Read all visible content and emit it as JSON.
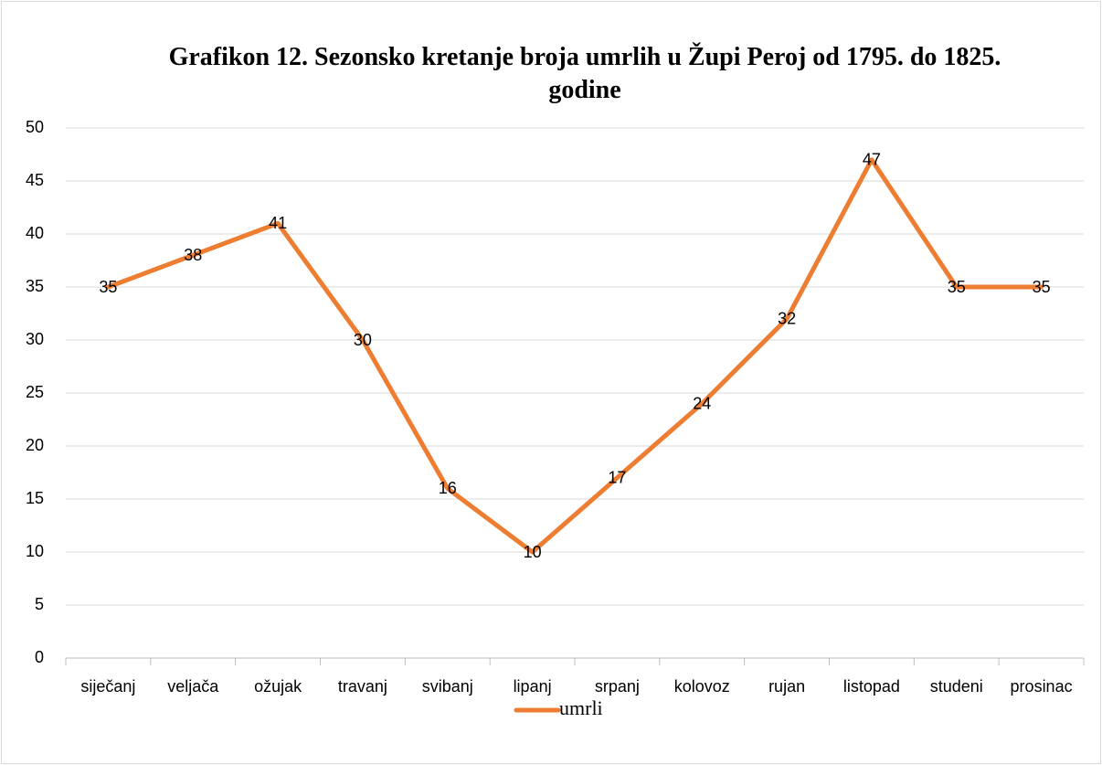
{
  "chart_data": {
    "type": "line",
    "title": "Grafikon 12. Sezonsko kretanje broja umrlih u Župi Peroj od 1795. do 1825. godine",
    "categories": [
      "siječanj",
      "veljača",
      "ožujak",
      "travanj",
      "svibanj",
      "lipanj",
      "srpanj",
      "kolovoz",
      "rujan",
      "listopad",
      "studeni",
      "prosinac"
    ],
    "series": [
      {
        "name": "umrli",
        "color": "#ed7d31",
        "values": [
          35,
          38,
          41,
          30,
          16,
          10,
          17,
          24,
          32,
          47,
          35,
          35
        ]
      }
    ],
    "ylim": [
      0,
      50
    ],
    "yticks": [
      0,
      5,
      10,
      15,
      20,
      25,
      30,
      35,
      40,
      45,
      50
    ],
    "grid": true,
    "legend": "bottom"
  }
}
